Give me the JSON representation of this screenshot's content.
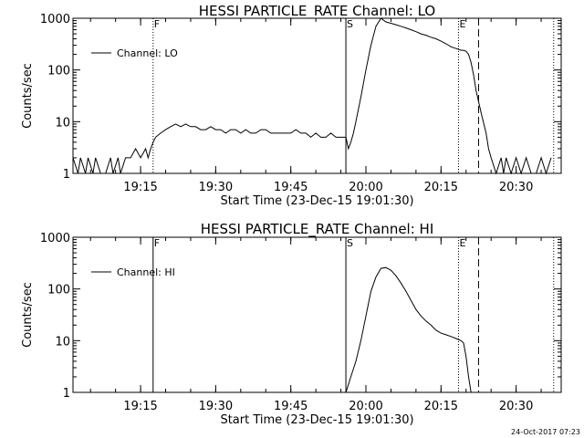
{
  "footer": {
    "timestamp": "24-Oct-2017 07:23"
  },
  "chart_data": [
    {
      "type": "line",
      "title": "HESSI PARTICLE_RATE Channel: LO",
      "xlabel": "Start Time (23-Dec-15 19:01:30)",
      "ylabel": "Counts/sec",
      "yscale": "log",
      "xlim": [
        "19:01:30",
        "20:39:00"
      ],
      "ylim": [
        1,
        1000
      ],
      "xticks": [
        "19:15",
        "19:30",
        "19:45",
        "20:00",
        "20:15",
        "20:30"
      ],
      "yticks": [
        "1",
        "10",
        "100",
        "1000"
      ],
      "legend": {
        "position": "top-left",
        "entries": [
          "Channel: LO"
        ]
      },
      "markers": [
        {
          "label": "F",
          "time": "19:17:30",
          "style": "dotted"
        },
        {
          "label": "S",
          "time": "19:56:00",
          "style": "solid"
        },
        {
          "label": "E",
          "time": "20:18:30",
          "style": "dotted"
        },
        {
          "label": "",
          "time": "20:22:30",
          "style": "dashed"
        },
        {
          "label": "",
          "time": "20:37:30",
          "style": "dotted"
        }
      ],
      "series": [
        {
          "name": "Channel: LO",
          "x": [
            "19:01:30",
            "19:02:30",
            "19:03:00",
            "19:04:00",
            "19:04:30",
            "19:05:30",
            "19:06:00",
            "19:07:00",
            "19:08:00",
            "19:09:00",
            "19:09:30",
            "19:10:30",
            "19:11:00",
            "19:12:00",
            "19:13:00",
            "19:14:00",
            "19:15:00",
            "19:16:00",
            "19:16:30",
            "19:17:00",
            "19:17:30",
            "19:18:00",
            "19:19:00",
            "19:20:00",
            "19:21:00",
            "19:22:00",
            "19:23:00",
            "19:24:00",
            "19:25:00",
            "19:26:00",
            "19:27:00",
            "19:28:00",
            "19:29:00",
            "19:30:00",
            "19:31:00",
            "19:32:00",
            "19:33:00",
            "19:34:00",
            "19:35:00",
            "19:36:00",
            "19:37:00",
            "19:38:00",
            "19:39:00",
            "19:40:00",
            "19:41:00",
            "19:42:00",
            "19:43:00",
            "19:44:00",
            "19:45:00",
            "19:46:00",
            "19:47:00",
            "19:48:00",
            "19:49:00",
            "19:50:00",
            "19:51:00",
            "19:52:00",
            "19:53:00",
            "19:54:00",
            "19:55:00",
            "19:56:00",
            "19:56:30",
            "19:57:00",
            "19:57:30",
            "19:58:00",
            "19:59:00",
            "20:00:00",
            "20:01:00",
            "20:02:00",
            "20:03:00",
            "20:04:00",
            "20:05:00",
            "20:06:00",
            "20:07:00",
            "20:08:00",
            "20:09:00",
            "20:10:00",
            "20:11:00",
            "20:12:00",
            "20:13:00",
            "20:14:00",
            "20:15:00",
            "20:16:00",
            "20:17:00",
            "20:18:00",
            "20:19:00",
            "20:19:30",
            "20:20:00",
            "20:20:30",
            "20:21:00",
            "20:21:30",
            "20:22:00",
            "20:23:00",
            "20:24:00",
            "20:24:30",
            "20:25:00",
            "20:26:00",
            "20:27:00",
            "20:27:30",
            "20:28:00",
            "20:29:00",
            "20:30:00",
            "20:31:00",
            "20:32:00",
            "20:33:00",
            "20:34:00",
            "20:35:00",
            "20:36:00",
            "20:37:00"
          ],
          "values": [
            2,
            1,
            2,
            1,
            2,
            1,
            2,
            1,
            1,
            2,
            1,
            2,
            1,
            2,
            2,
            3,
            2,
            3,
            2,
            3,
            4,
            5,
            6,
            7,
            8,
            9,
            8,
            9,
            8,
            8,
            7,
            7,
            8,
            7,
            7,
            6,
            7,
            7,
            6,
            7,
            6,
            6,
            7,
            7,
            6,
            6,
            6,
            6,
            6,
            7,
            6,
            6,
            5,
            6,
            5,
            5,
            6,
            5,
            5,
            5,
            3,
            4,
            6,
            10,
            30,
            100,
            300,
            700,
            1000,
            850,
            800,
            750,
            700,
            650,
            600,
            550,
            500,
            470,
            430,
            400,
            360,
            320,
            280,
            260,
            240,
            240,
            230,
            200,
            140,
            80,
            40,
            15,
            6,
            3,
            2,
            1,
            2,
            1,
            2,
            1,
            2,
            1,
            2,
            1,
            1,
            2,
            1,
            2
          ]
        }
      ]
    },
    {
      "type": "line",
      "title": "HESSI PARTICLE_RATE Channel: HI",
      "xlabel": "Start Time (23-Dec-15 19:01:30)",
      "ylabel": "Counts/sec",
      "yscale": "log",
      "xlim": [
        "19:01:30",
        "20:39:00"
      ],
      "ylim": [
        1,
        1000
      ],
      "xticks": [
        "19:15",
        "19:30",
        "19:45",
        "20:00",
        "20:15",
        "20:30"
      ],
      "yticks": [
        "1",
        "10",
        "100",
        "1000"
      ],
      "legend": {
        "position": "top-left",
        "entries": [
          "Channel: HI"
        ]
      },
      "markers": [
        {
          "label": "F",
          "time": "19:17:30",
          "style": "solid"
        },
        {
          "label": "S",
          "time": "19:56:00",
          "style": "solid"
        },
        {
          "label": "E",
          "time": "20:18:30",
          "style": "dotted"
        },
        {
          "label": "",
          "time": "20:22:30",
          "style": "dashed"
        },
        {
          "label": "",
          "time": "20:37:30",
          "style": "dotted"
        }
      ],
      "series": [
        {
          "name": "Channel: HI",
          "x": [
            "19:56:00",
            "19:57:00",
            "19:58:00",
            "19:59:00",
            "20:00:00",
            "20:01:00",
            "20:02:00",
            "20:03:00",
            "20:04:00",
            "20:05:00",
            "20:06:00",
            "20:07:00",
            "20:08:00",
            "20:09:00",
            "20:10:00",
            "20:11:00",
            "20:12:00",
            "20:13:00",
            "20:14:00",
            "20:15:00",
            "20:16:00",
            "20:17:00",
            "20:18:00",
            "20:19:00",
            "20:19:30",
            "20:20:00",
            "20:20:30",
            "20:21:00"
          ],
          "values": [
            1,
            2,
            4,
            10,
            30,
            90,
            170,
            250,
            260,
            230,
            180,
            130,
            90,
            60,
            40,
            30,
            24,
            20,
            16,
            14,
            13,
            12,
            11,
            10,
            9,
            5,
            2,
            1
          ]
        }
      ]
    }
  ]
}
